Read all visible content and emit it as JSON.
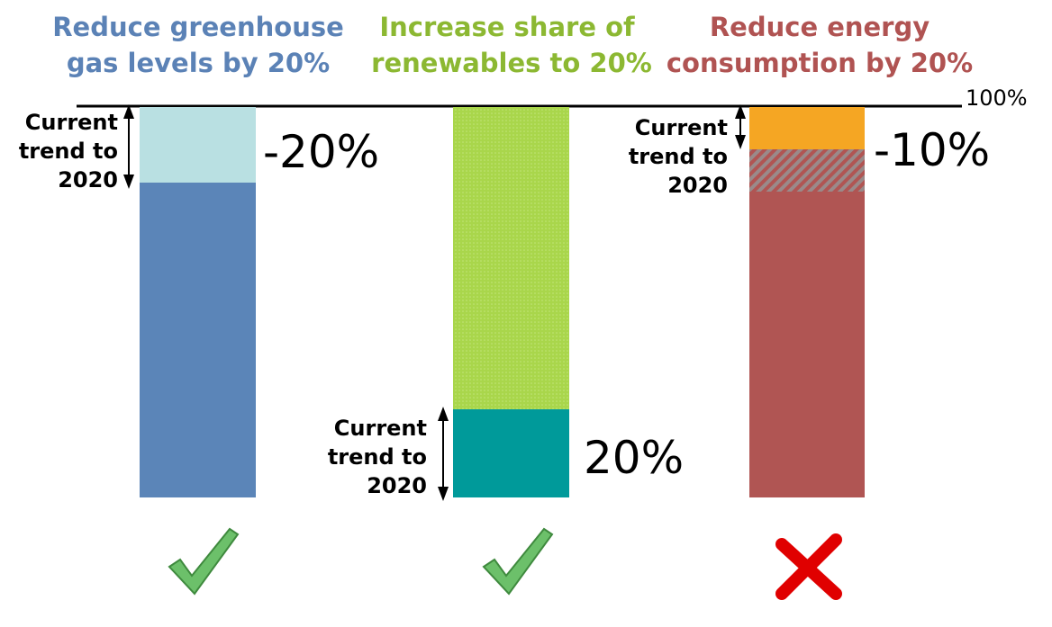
{
  "top_label": "100%",
  "columns": [
    {
      "title": [
        "Reduce greenhouse",
        "gas levels by 20%"
      ],
      "trend": [
        "Current",
        "trend to",
        "2020"
      ],
      "change": "-20%"
    },
    {
      "title": [
        "Increase share of",
        "renewables to 20%"
      ],
      "trend": [
        "Current",
        "trend to",
        "2020"
      ],
      "change": "20%"
    },
    {
      "title": [
        "Reduce energy",
        "consumption by 20%"
      ],
      "trend": [
        "Current",
        "trend to",
        "2020"
      ],
      "change": "-10%"
    }
  ]
}
